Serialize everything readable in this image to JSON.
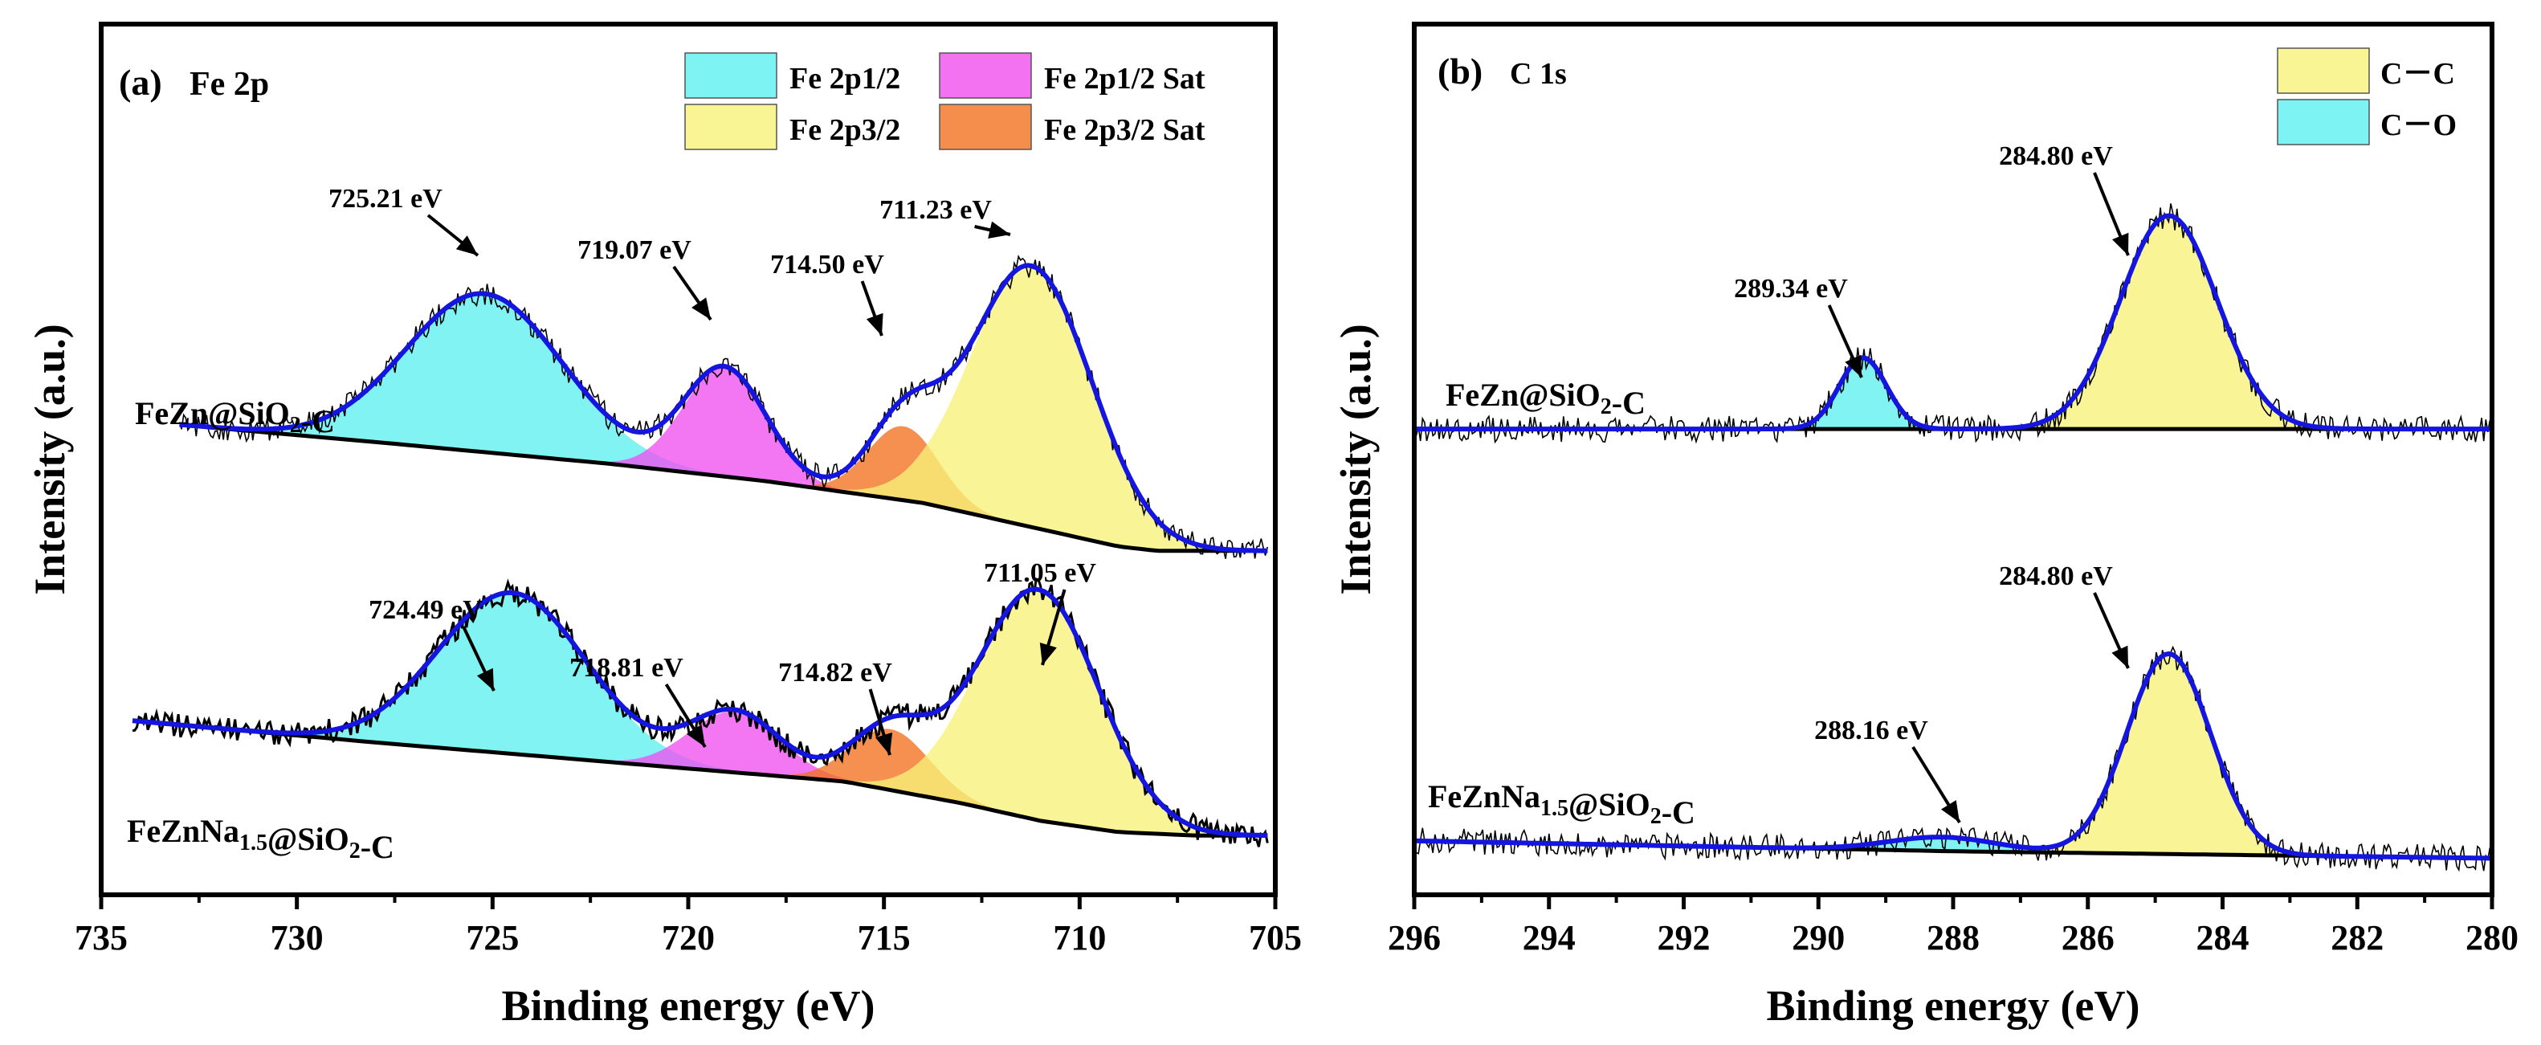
{
  "chart_data": [
    {
      "type": "line",
      "panel_label": "(a)",
      "title": "Fe 2p",
      "xlabel": "Binding energy (eV)",
      "ylabel": "Intensity (a.u.)",
      "xlim": [
        735,
        705
      ],
      "ylim": [
        0,
        10
      ],
      "xticks": [
        735,
        730,
        725,
        720,
        715,
        710,
        705
      ],
      "xtick_labels": [
        "735",
        "730",
        "725",
        "720",
        "715",
        "710",
        "705"
      ],
      "legend": {
        "placement": "top-right",
        "entries": [
          {
            "label": "Fe 2p1/2",
            "color": "#5df0f0"
          },
          {
            "label": "Fe 2p1/2 Sat",
            "color": "#ef4fef"
          },
          {
            "label": "Fe 2p3/2",
            "color": "#f7f27a"
          },
          {
            "label": "Fe 2p3/2 Sat",
            "color": "#f2711f"
          }
        ]
      },
      "spectra": [
        {
          "sample": "FeZn@SiO",
          "sample_sub": "2",
          "sample_suffix": "-C",
          "baseline_points": [
            [
              733.0,
              5.4
            ],
            [
              728,
              5.2
            ],
            [
              722,
              4.95
            ],
            [
              718,
              4.75
            ],
            [
              714,
              4.5
            ],
            [
              711,
              4.2
            ],
            [
              709,
              4.0
            ],
            [
              708,
              3.95
            ],
            [
              705.2,
              3.95
            ]
          ],
          "peaks": [
            {
              "name": "Fe 2p1/2",
              "center": 725.21,
              "height": 1.82,
              "sigma": 2.0,
              "color": "#5df0f0",
              "label": "725.21 eV"
            },
            {
              "name": "Fe 2p1/2 Sat",
              "center": 719.07,
              "height": 1.25,
              "sigma": 1.05,
              "color": "#ef4fef",
              "label": "719.07 eV"
            },
            {
              "name": "Fe 2p3/2 Sat",
              "center": 714.5,
              "height": 0.85,
              "sigma": 0.9,
              "color": "#f2711f",
              "label": "714.50 eV"
            },
            {
              "name": "Fe 2p3/2",
              "center": 711.23,
              "height": 3.0,
              "sigma": 1.55,
              "color": "#f7f27a",
              "label": "711.23 eV"
            }
          ]
        },
        {
          "sample": "FeZnNa",
          "sample_sub": "1.5",
          "sample_suffix": "@SiO",
          "sample_sub2": "2",
          "sample_suffix2": "-C",
          "baseline_points": [
            [
              734.2,
              2.0
            ],
            [
              728,
              1.75
            ],
            [
              724,
              1.6
            ],
            [
              720,
              1.45
            ],
            [
              716,
              1.3
            ],
            [
              713,
              1.05
            ],
            [
              711,
              0.85
            ],
            [
              709,
              0.72
            ],
            [
              707,
              0.68
            ],
            [
              705.2,
              0.68
            ]
          ],
          "peaks": [
            {
              "name": "Fe 2p1/2",
              "center": 724.49,
              "height": 1.85,
              "sigma": 1.9,
              "color": "#5df0f0",
              "label": "724.49 eV"
            },
            {
              "name": "Fe 2p1/2 Sat",
              "center": 718.81,
              "height": 0.7,
              "sigma": 1.15,
              "color": "#ef4fef",
              "label": "718.81 eV"
            },
            {
              "name": "Fe 2p3/2 Sat",
              "center": 714.82,
              "height": 0.7,
              "sigma": 1.0,
              "color": "#f2711f",
              "label": "714.82 eV"
            },
            {
              "name": "Fe 2p3/2",
              "center": 711.05,
              "height": 2.65,
              "sigma": 1.55,
              "color": "#f7f27a",
              "label": "711.05 eV"
            }
          ]
        }
      ]
    },
    {
      "type": "line",
      "panel_label": "(b)",
      "title": "C 1s",
      "xlabel": "Binding energy (eV)",
      "ylabel": "Intensity (a.u.)",
      "xlim": [
        296,
        280
      ],
      "ylim": [
        0,
        10
      ],
      "xticks": [
        296,
        294,
        292,
        290,
        288,
        286,
        284,
        282,
        280
      ],
      "xtick_labels": [
        "296",
        "294",
        "292",
        "290",
        "288",
        "286",
        "284",
        "282",
        "280"
      ],
      "legend": {
        "placement": "top-right",
        "entries": [
          {
            "label": "C－C",
            "color": "#f7f27a"
          },
          {
            "label": "C－O",
            "color": "#5df0f0"
          }
        ]
      },
      "spectra": [
        {
          "sample": "FeZn@SiO",
          "sample_sub": "2",
          "sample_suffix": "-C",
          "baseline_points": [
            [
              296,
              5.35
            ],
            [
              288,
              5.35
            ],
            [
              280,
              5.35
            ]
          ],
          "peaks": [
            {
              "name": "C－O",
              "center": 289.34,
              "height": 0.82,
              "sigma": 0.35,
              "color": "#5df0f0",
              "label": "289.34 eV"
            },
            {
              "name": "C－C",
              "center": 284.8,
              "height": 2.45,
              "sigma": 0.72,
              "color": "#f7f27a",
              "label": "284.80 eV"
            }
          ]
        },
        {
          "sample": "FeZnNa",
          "sample_sub": "1.5",
          "sample_suffix": "@SiO",
          "sample_sub2": "2",
          "sample_suffix2": "-C",
          "baseline_points": [
            [
              296,
              0.62
            ],
            [
              288,
              0.5
            ],
            [
              280,
              0.42
            ]
          ],
          "peaks": [
            {
              "name": "C－O",
              "center": 288.16,
              "height": 0.16,
              "sigma": 0.8,
              "color": "#5df0f0",
              "label": "288.16 eV"
            },
            {
              "name": "C－C",
              "center": 284.8,
              "height": 2.3,
              "sigma": 0.62,
              "color": "#f7f27a",
              "label": "284.80 eV"
            }
          ]
        }
      ]
    }
  ]
}
